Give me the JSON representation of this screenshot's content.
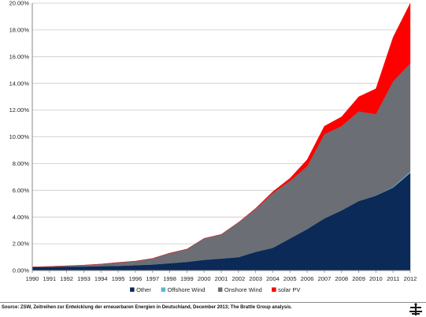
{
  "chart_data": {
    "type": "area",
    "stacked": true,
    "title": "",
    "xlabel": "",
    "ylabel": "",
    "ylim": [
      0,
      20
    ],
    "y_unit": "%",
    "y_ticks": [
      "0.00%",
      "2.00%",
      "4.00%",
      "6.00%",
      "8.00%",
      "10.00%",
      "12.00%",
      "14.00%",
      "16.00%",
      "18.00%",
      "20.00%"
    ],
    "grid": true,
    "legend_position": "bottom",
    "x": [
      "1990",
      "1991",
      "1992",
      "1993",
      "1994",
      "1995",
      "1996",
      "1997",
      "1998",
      "1999",
      "2000",
      "2001",
      "2002",
      "2003",
      "2004",
      "2005",
      "2006",
      "2007",
      "2008",
      "2009",
      "2010",
      "2011",
      "2012"
    ],
    "series": [
      {
        "name": "Other",
        "color": "#0c2a57",
        "values": [
          0.25,
          0.27,
          0.3,
          0.3,
          0.33,
          0.35,
          0.4,
          0.45,
          0.55,
          0.65,
          0.8,
          0.9,
          1.0,
          1.4,
          1.7,
          2.4,
          3.1,
          3.9,
          4.5,
          5.2,
          5.6,
          6.2,
          7.3
        ]
      },
      {
        "name": "Offshore Wind",
        "color": "#5bb8cc",
        "values": [
          0,
          0,
          0,
          0,
          0,
          0,
          0,
          0,
          0,
          0,
          0,
          0,
          0,
          0,
          0,
          0,
          0,
          0,
          0,
          0,
          0,
          0.05,
          0.1
        ]
      },
      {
        "name": "Onshore Wind",
        "color": "#6b6e74",
        "values": [
          0.02,
          0.03,
          0.05,
          0.1,
          0.15,
          0.25,
          0.3,
          0.45,
          0.75,
          0.95,
          1.6,
          1.8,
          2.6,
          3.2,
          4.1,
          4.3,
          4.7,
          6.3,
          6.3,
          6.7,
          6.1,
          7.9,
          8.1
        ]
      },
      {
        "name": "solar PV",
        "color": "#ff0000",
        "values": [
          0,
          0,
          0,
          0,
          0,
          0,
          0,
          0,
          0,
          0,
          0,
          0,
          0,
          0.05,
          0.1,
          0.2,
          0.5,
          0.6,
          0.7,
          1.1,
          1.9,
          3.3,
          4.5
        ]
      }
    ]
  },
  "footer": {
    "source": "Source: ZSW, Zeitreihen zur Entwicklung der erneuerbaren Energien in Deutschland, December 2013; The Brattle Group analysis."
  },
  "logo": {
    "icon": "brattle-logo-icon"
  }
}
